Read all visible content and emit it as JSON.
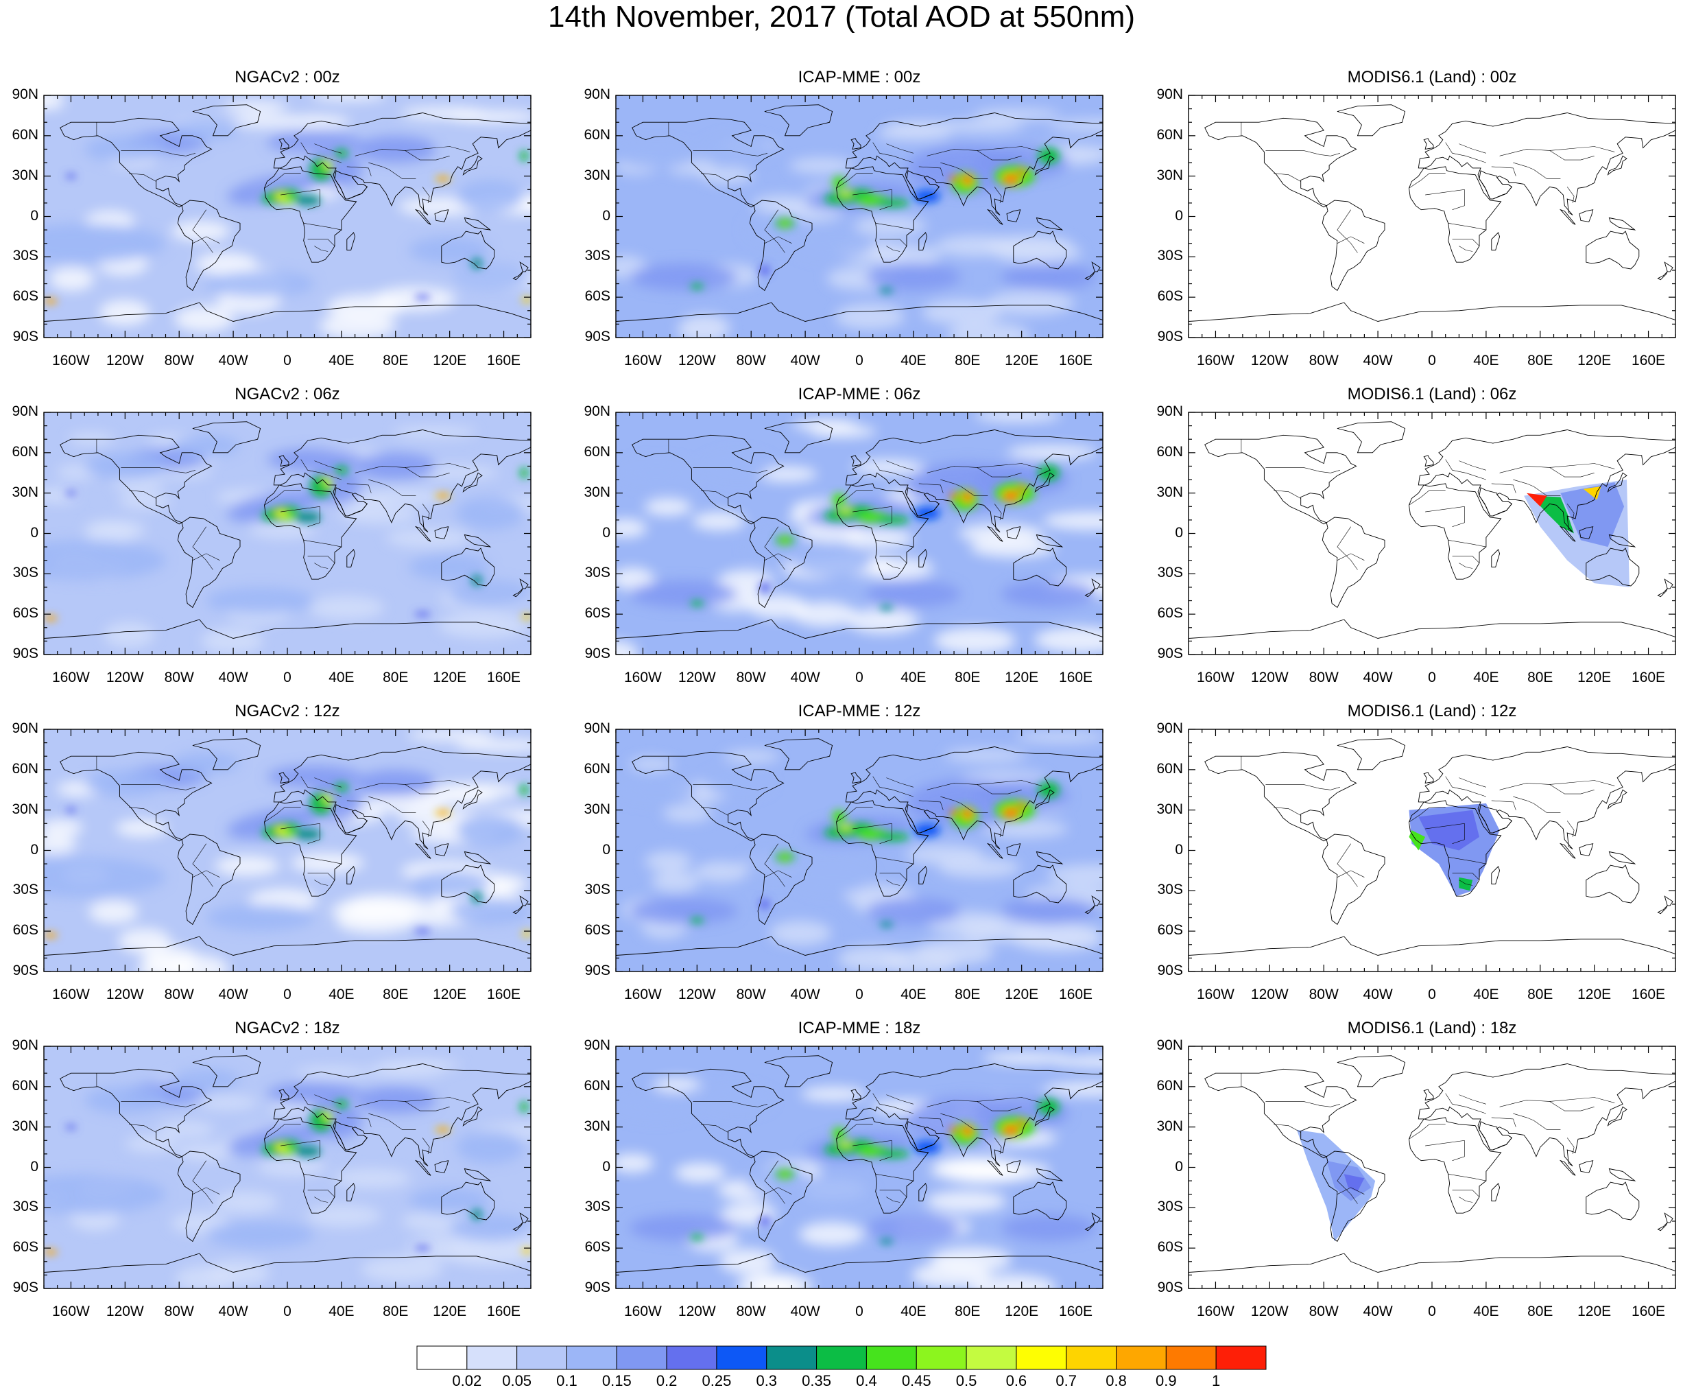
{
  "title": "14th November, 2017 (Total AOD at 550nm)",
  "lat_labels": [
    "90N",
    "60N",
    "30N",
    "0",
    "30S",
    "60S",
    "90S"
  ],
  "lon_labels": [
    "160W",
    "120W",
    "80W",
    "40W",
    "0",
    "40E",
    "80E",
    "120E",
    "160E"
  ],
  "panels": [
    {
      "row": 0,
      "col": 0,
      "title": "NGACv2 : 00z",
      "model": "NGACv2"
    },
    {
      "row": 0,
      "col": 1,
      "title": "ICAP-MME : 00z",
      "model": "ICAP"
    },
    {
      "row": 0,
      "col": 2,
      "title": "MODIS6.1 (Land) : 00z",
      "model": "MODIS",
      "swath": "none"
    },
    {
      "row": 1,
      "col": 0,
      "title": "NGACv2 : 06z",
      "model": "NGACv2"
    },
    {
      "row": 1,
      "col": 1,
      "title": "ICAP-MME : 06z",
      "model": "ICAP"
    },
    {
      "row": 1,
      "col": 2,
      "title": "MODIS6.1 (Land) : 06z",
      "model": "MODIS",
      "swath": "asia"
    },
    {
      "row": 2,
      "col": 0,
      "title": "NGACv2 : 12z",
      "model": "NGACv2"
    },
    {
      "row": 2,
      "col": 1,
      "title": "ICAP-MME : 12z",
      "model": "ICAP"
    },
    {
      "row": 2,
      "col": 2,
      "title": "MODIS6.1 (Land) : 12z",
      "model": "MODIS",
      "swath": "africa"
    },
    {
      "row": 3,
      "col": 0,
      "title": "NGACv2 : 18z",
      "model": "NGACv2"
    },
    {
      "row": 3,
      "col": 1,
      "title": "ICAP-MME : 18z",
      "model": "ICAP"
    },
    {
      "row": 3,
      "col": 2,
      "title": "MODIS6.1 (Land) : 18z",
      "model": "MODIS",
      "swath": "samerica"
    }
  ],
  "colorbar": {
    "colors": [
      "#ffffff",
      "#d6e0fb",
      "#b6c8f8",
      "#9cb6f7",
      "#8098f2",
      "#6470ee",
      "#0d58f6",
      "#0b8e8a",
      "#0cbd45",
      "#46e31d",
      "#8cf51e",
      "#c4fb40",
      "#fefe02",
      "#fed400",
      "#fea700",
      "#fe7a00",
      "#fe1f07"
    ],
    "labels": [
      "0.02",
      "0.05",
      "0.1",
      "0.15",
      "0.2",
      "0.25",
      "0.3",
      "0.35",
      "0.4",
      "0.45",
      "0.5",
      "0.6",
      "0.7",
      "0.8",
      "0.9",
      "1"
    ]
  }
}
